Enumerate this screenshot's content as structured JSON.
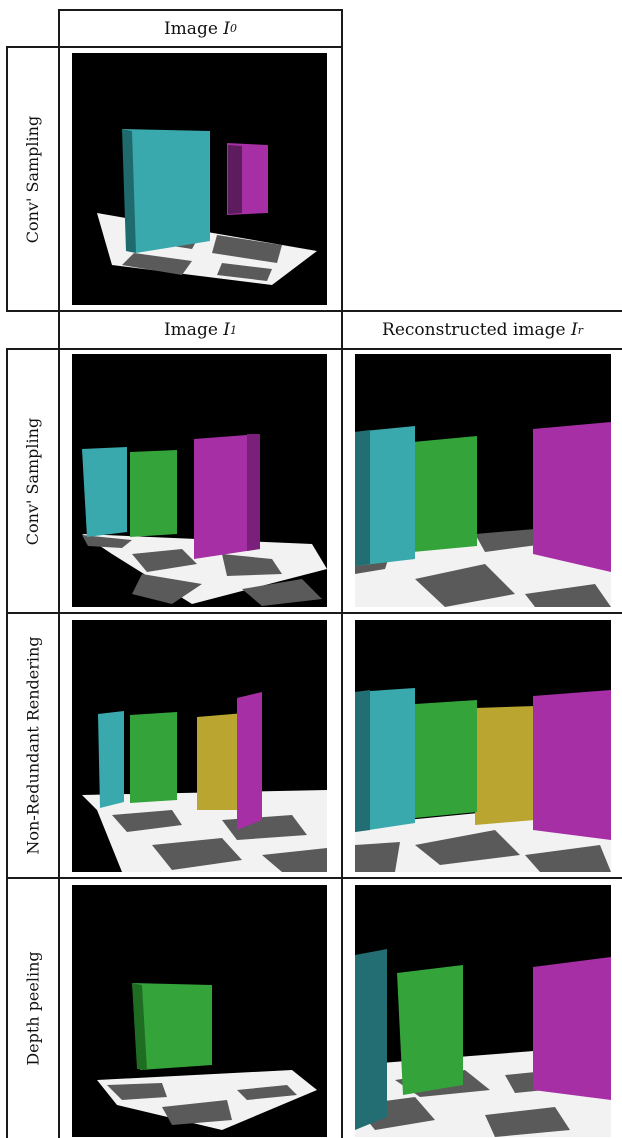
{
  "figure": {
    "top_section": {
      "column_header": {
        "text": "Image ",
        "symbol": "I",
        "subscript": "0"
      },
      "row_label": "Conv' Sampling"
    },
    "bottom_section": {
      "column_headers": [
        {
          "text": "Image ",
          "symbol": "I",
          "subscript": "1"
        },
        {
          "text": "Reconstructed image ",
          "symbol": "I",
          "subscript": "r"
        }
      ],
      "row_labels": [
        "Conv' Sampling",
        "Non-Redundant Rendering",
        "Depth peeling"
      ]
    },
    "colors": {
      "background": "#000000",
      "cyan_box": "#3aa9ad",
      "green_box": "#34a33a",
      "magenta_box": "#a62fa6",
      "yellow_box": "#b9a530",
      "checker_light": "#f2f2f2",
      "checker_dark": "#5a5a5a"
    }
  }
}
